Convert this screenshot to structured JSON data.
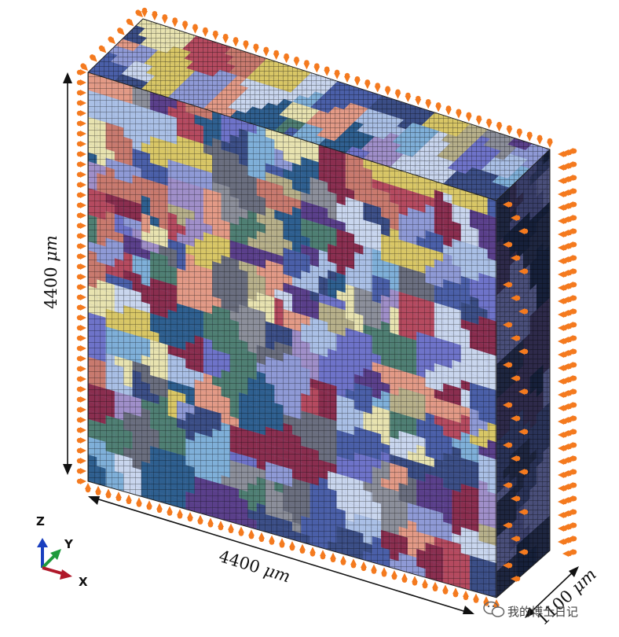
{
  "dimensions": {
    "height": {
      "value": "4400",
      "unit": "μm"
    },
    "width": {
      "value": "4400",
      "unit": "μm"
    },
    "depth": {
      "value": "1100",
      "unit": "μm"
    }
  },
  "triad": {
    "z": "Z",
    "y": "Y",
    "x": "X",
    "colors": {
      "z": "#1a3fbf",
      "y": "#1f9a3c",
      "x": "#b0182a"
    }
  },
  "watermark": {
    "text": "我的博士日记",
    "icon": "wechat-icon"
  },
  "colors": {
    "mesh_line": "#000000",
    "boundary_markers": "#f47a1f",
    "grain_palette": [
      "#4a5fa8",
      "#6e73c9",
      "#8f9ad6",
      "#aac0e6",
      "#c9d6ee",
      "#e8e3b0",
      "#d9c766",
      "#b54a5f",
      "#8a2e4f",
      "#c97a6e",
      "#e39a86",
      "#4f7f73",
      "#2e5f8f",
      "#6a6e7e",
      "#8c8f9a",
      "#b7b08a",
      "#5a3f8a",
      "#3b4e86",
      "#a08fc9",
      "#7fb0d9"
    ]
  }
}
